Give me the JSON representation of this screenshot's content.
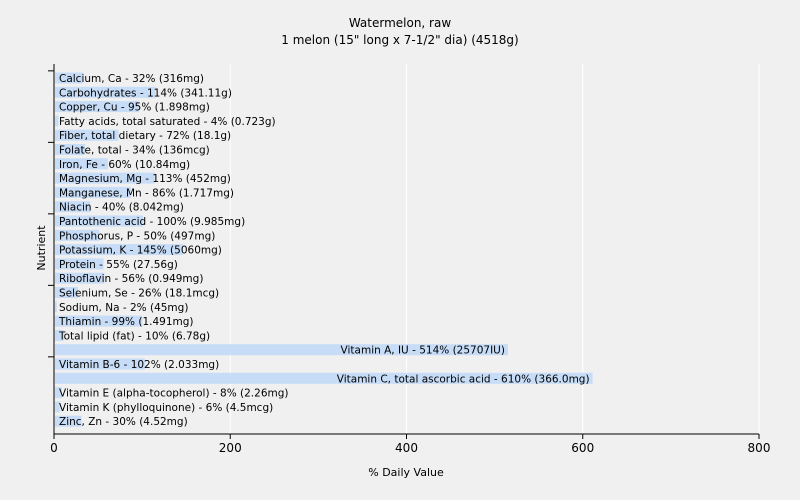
{
  "chart_data": {
    "type": "bar",
    "orientation": "horizontal",
    "title": "Watermelon, raw",
    "subtitle": "1 melon (15\" long x 7-1/2\" dia) (4518g)",
    "xlabel": "% Daily Value",
    "ylabel": "Nutrient",
    "xlim": [
      0,
      800
    ],
    "xticks": [
      "0",
      "200",
      "400",
      "600",
      "800"
    ],
    "grid": true,
    "colors": {
      "bar": "#c6dcf7",
      "grid": "#ffffff",
      "axis": "#000000",
      "background": "#f0f0f0"
    },
    "bars": [
      {
        "category": "Calcium, Ca",
        "value": 32,
        "label": "Calcium, Ca - 32% (316mg)"
      },
      {
        "category": "Carbohydrates",
        "value": 114,
        "label": "Carbohydrates - 114% (341.11g)"
      },
      {
        "category": "Copper, Cu",
        "value": 95,
        "label": "Copper, Cu - 95% (1.898mg)"
      },
      {
        "category": "Fatty acids, total saturated",
        "value": 4,
        "label": "Fatty acids, total saturated - 4% (0.723g)"
      },
      {
        "category": "Fiber, total dietary",
        "value": 72,
        "label": "Fiber, total dietary - 72% (18.1g)"
      },
      {
        "category": "Folate, total",
        "value": 34,
        "label": "Folate, total - 34% (136mcg)"
      },
      {
        "category": "Iron, Fe",
        "value": 60,
        "label": "Iron, Fe - 60% (10.84mg)"
      },
      {
        "category": "Magnesium, Mg",
        "value": 113,
        "label": "Magnesium, Mg - 113% (452mg)"
      },
      {
        "category": "Manganese, Mn",
        "value": 86,
        "label": "Manganese, Mn - 86% (1.717mg)"
      },
      {
        "category": "Niacin",
        "value": 40,
        "label": "Niacin - 40% (8.042mg)"
      },
      {
        "category": "Pantothenic acid",
        "value": 100,
        "label": "Pantothenic acid - 100% (9.985mg)"
      },
      {
        "category": "Phosphorus, P",
        "value": 50,
        "label": "Phosphorus, P - 50% (497mg)"
      },
      {
        "category": "Potassium, K",
        "value": 145,
        "label": "Potassium, K - 145% (5060mg)"
      },
      {
        "category": "Protein",
        "value": 55,
        "label": "Protein - 55% (27.56g)"
      },
      {
        "category": "Riboflavin",
        "value": 56,
        "label": "Riboflavin - 56% (0.949mg)"
      },
      {
        "category": "Selenium, Se",
        "value": 26,
        "label": "Selenium, Se - 26% (18.1mcg)"
      },
      {
        "category": "Sodium, Na",
        "value": 2,
        "label": "Sodium, Na - 2% (45mg)"
      },
      {
        "category": "Thiamin",
        "value": 99,
        "label": "Thiamin - 99% (1.491mg)"
      },
      {
        "category": "Total lipid (fat)",
        "value": 10,
        "label": "Total lipid (fat) - 10% (6.78g)"
      },
      {
        "category": "Vitamin A, IU",
        "value": 514,
        "label": "Vitamin A, IU - 514% (25707IU)"
      },
      {
        "category": "Vitamin B-6",
        "value": 102,
        "label": "Vitamin B-6 - 102% (2.033mg)"
      },
      {
        "category": "Vitamin C, total ascorbic acid",
        "value": 610,
        "label": "Vitamin C, total ascorbic acid - 610% (366.0mg)"
      },
      {
        "category": "Vitamin E (alpha-tocopherol)",
        "value": 8,
        "label": "Vitamin E (alpha-tocopherol) - 8% (2.26mg)"
      },
      {
        "category": "Vitamin K (phylloquinone)",
        "value": 6,
        "label": "Vitamin K (phylloquinone) - 6% (4.5mcg)"
      },
      {
        "category": "Zinc, Zn",
        "value": 30,
        "label": "Zinc, Zn - 30% (4.52mg)"
      }
    ]
  }
}
